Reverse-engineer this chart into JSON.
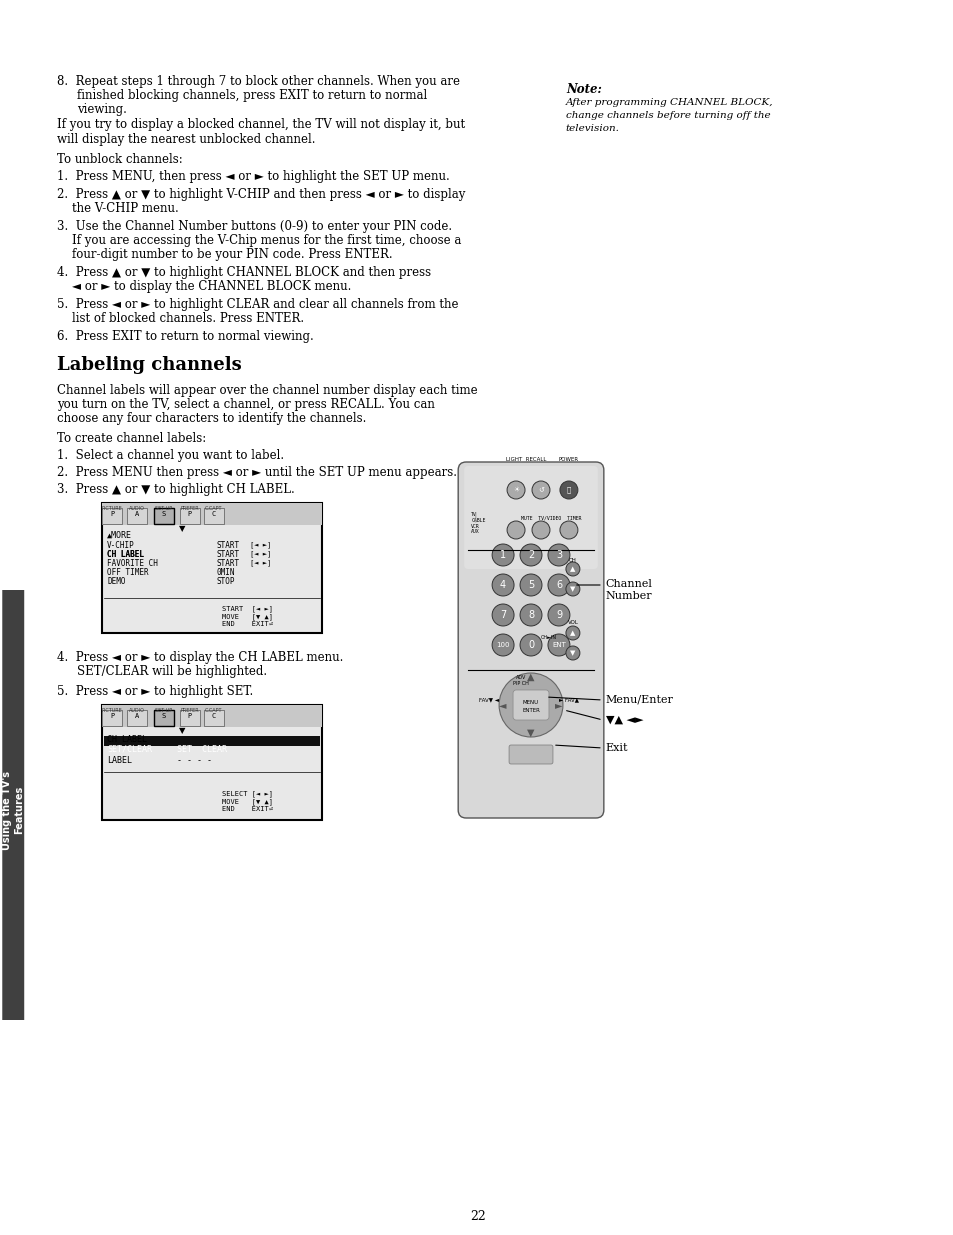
{
  "page_number": "22",
  "background_color": "#ffffff",
  "text_color": "#000000",
  "sidebar_color": "#404040",
  "sidebar_text": "Using the TV's\nFeatures",
  "section_top": {
    "item8_line1": "8.  Repeat steps 1 through 7 to block other channels. When you are",
    "item8_line2": "    finished blocking channels, press EXIT to return to normal",
    "item8_line3": "    viewing.",
    "note_title": "Note:",
    "note_body_line1": "After programming CHANNEL BLOCK,",
    "note_body_line2": "change channels before turning off the",
    "note_body_line3": "television.",
    "para1_line1": "If you try to display a blocked channel, the TV will not display it, but",
    "para1_line2": "will display the nearest unblocked channel.",
    "para2": "To unblock channels:",
    "unblock_items": [
      "1.  Press MENU, then press ◄ or ► to highlight the SET UP menu.",
      "2.  Press ▲ or ▼ to highlight V-CHIP and then press ◄ or ► to display\n    the V-CHIP menu.",
      "3.  Use the Channel Number buttons (0-9) to enter your PIN code.\n    If you are accessing the V-Chip menus for the first time, choose a\n    four-digit number to be your PIN code. Press ENTER.",
      "4.  Press ▲ or ▼ to highlight CHANNEL BLOCK and then press\n    ◄ or ► to display the CHANNEL BLOCK menu.",
      "5.  Press ◄ or ► to highlight CLEAR and clear all channels from the\n    list of blocked channels. Press ENTER.",
      "6.  Press EXIT to return to normal viewing."
    ]
  },
  "section_labeling": {
    "title": "Labeling channels",
    "desc_line1": "Channel labels will appear over the channel number display each time",
    "desc_line2": "you turn on the TV, select a channel, or press RECALL. You can",
    "desc_line3": "choose any four characters to identify the channels.",
    "para": "To create channel labels:",
    "items": [
      "1.  Select a channel you want to label.",
      "2.  Press MENU then press ◄ or ► until the SET UP menu appears.",
      "3.  Press ▲ or ▼ to highlight CH LABEL."
    ],
    "step4_line1": "4.  Press ◄ or ► to display the CH LABEL menu.",
    "step4_line2": "    SET/CLEAR will be highlighted.",
    "step5": "5.  Press ◄ or ► to highlight SET."
  },
  "remote_labels": {
    "channel_number": "Channel\nNumber",
    "menu_enter": "Menu/Enter",
    "nav": "▼▲ ◄►",
    "exit_label": "Exit"
  }
}
